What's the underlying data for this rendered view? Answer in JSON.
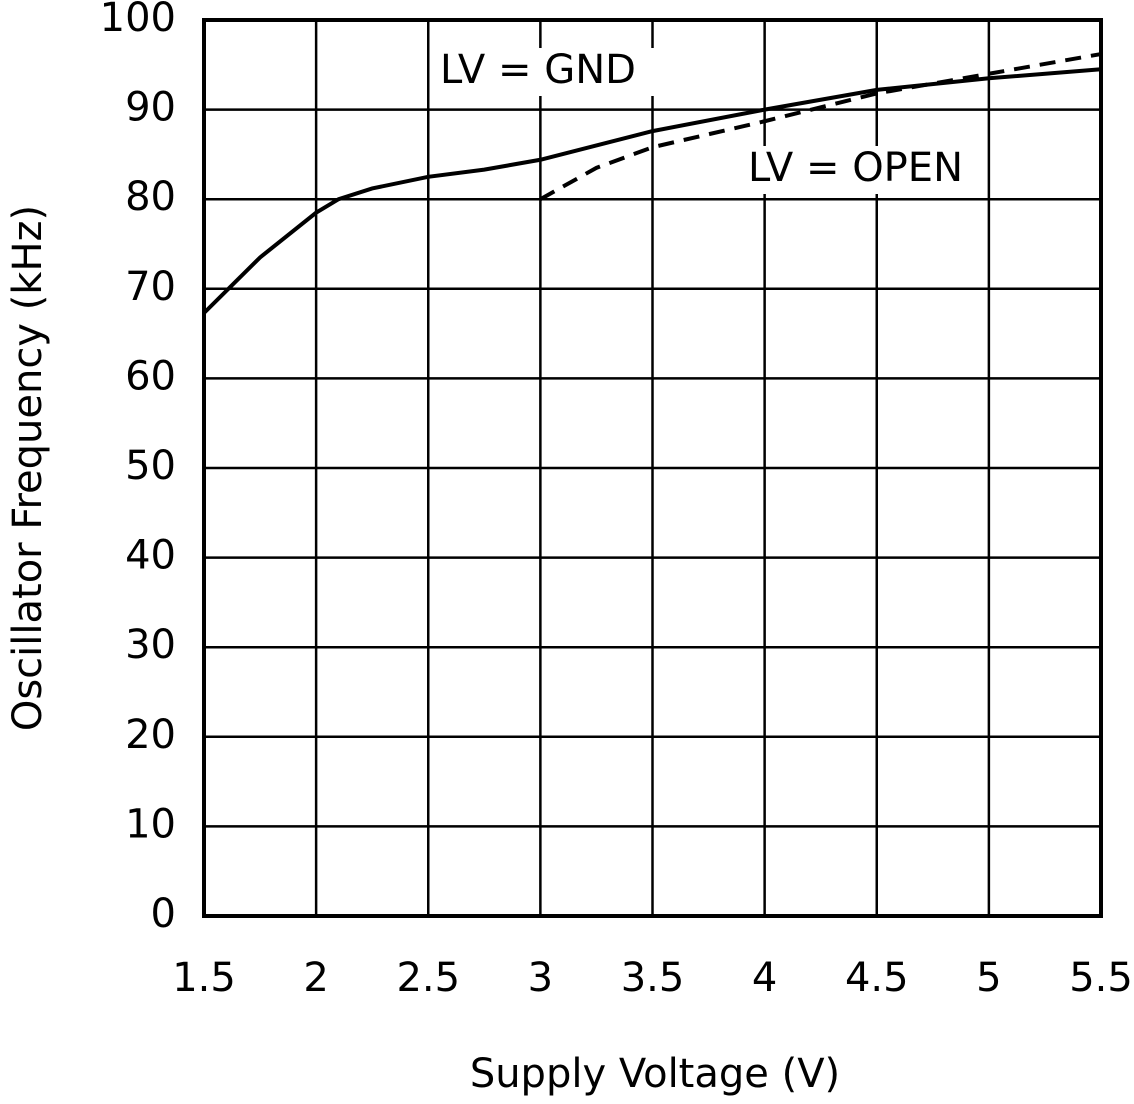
{
  "chart_data": {
    "type": "line",
    "x_label": "Supply Voltage (V)",
    "y_label": "Oscillator Frequency (kHz)",
    "xlim": [
      1.5,
      5.5
    ],
    "xticks": [
      1.5,
      2,
      2.5,
      3,
      3.5,
      4,
      4.5,
      5,
      5.5
    ],
    "ylim": [
      0,
      100
    ],
    "yticks": [
      0,
      10,
      20,
      30,
      40,
      50,
      60,
      70,
      80,
      90,
      100
    ],
    "grid": true,
    "series": [
      {
        "name": "LV = GND",
        "color": "#000000",
        "dashed": false,
        "x": [
          1.5,
          1.75,
          2.0,
          2.1,
          2.25,
          2.5,
          2.75,
          3.0,
          3.25,
          3.5,
          4.0,
          4.5,
          5.0,
          5.5
        ],
        "values": [
          67.3,
          73.5,
          78.5,
          80,
          81.2,
          82.5,
          83.3,
          84.4,
          86,
          87.6,
          90,
          92.2,
          93.5,
          94.5
        ]
      },
      {
        "name": "LV = OPEN",
        "color": "#000000",
        "dashed": true,
        "x": [
          3.0,
          3.25,
          3.5,
          4.0,
          4.5,
          5.0,
          5.5
        ],
        "values": [
          80,
          83.5,
          85.8,
          88.7,
          91.8,
          94,
          96.2
        ]
      }
    ]
  }
}
